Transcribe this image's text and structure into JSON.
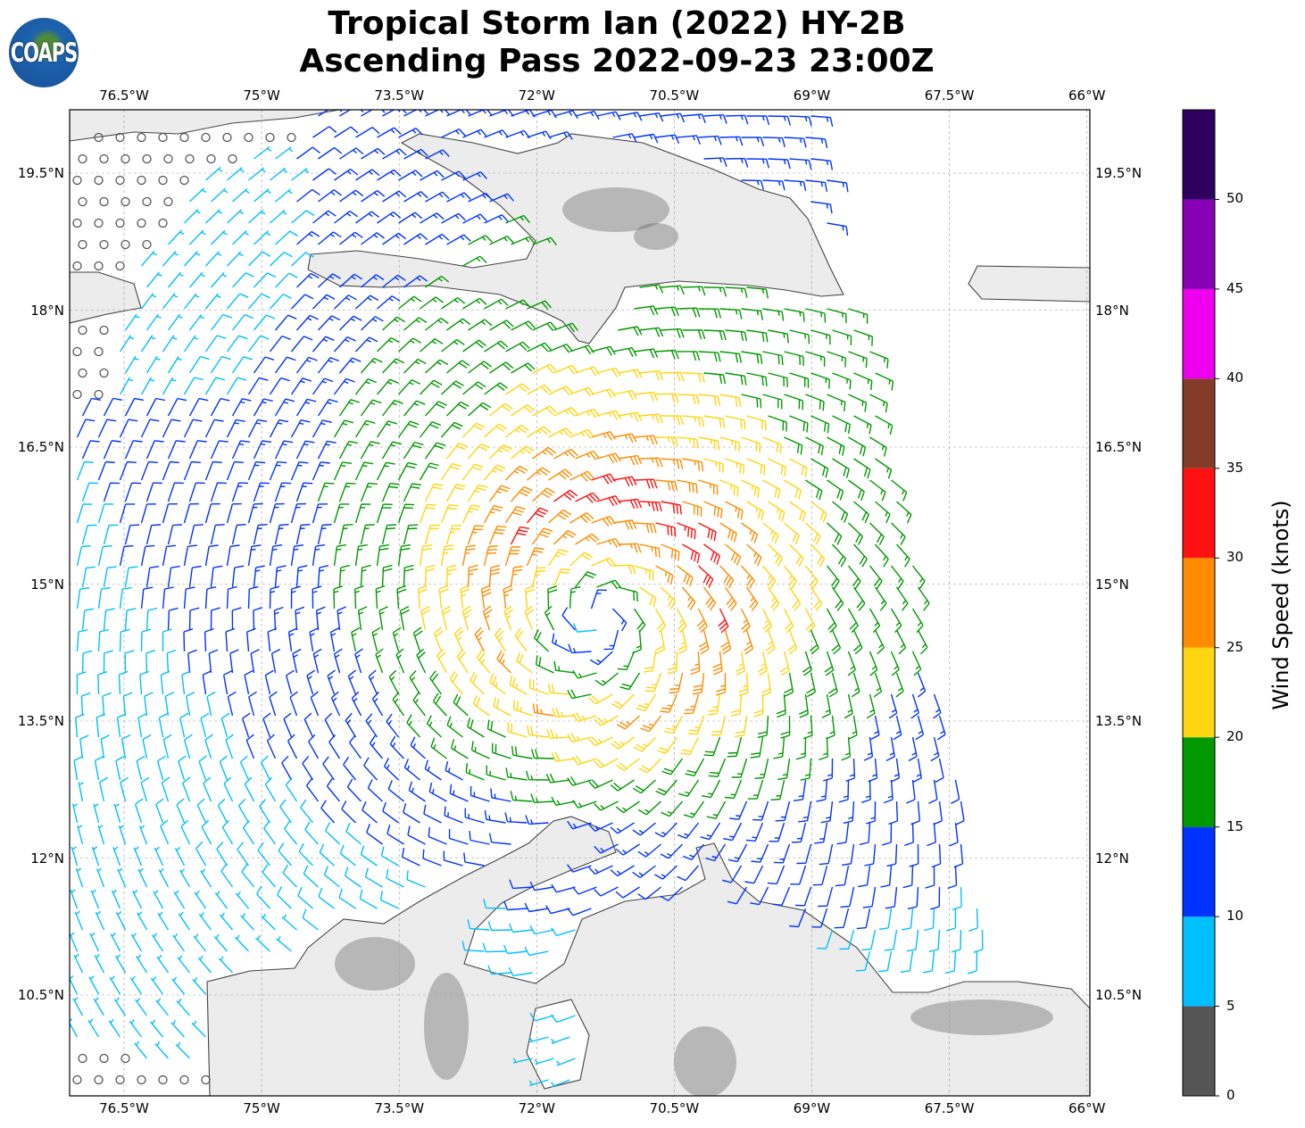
{
  "title": {
    "line1": "Tropical Storm Ian (2022) HY-2B",
    "line2": "Ascending Pass 2022-09-23 23:00Z"
  },
  "logo": {
    "text": "COAPS"
  },
  "axes": {
    "lon_ticks": [
      "76.5°W",
      "75°W",
      "73.5°W",
      "72°W",
      "70.5°W",
      "69°W",
      "67.5°W",
      "66°W"
    ],
    "lon_values": [
      -76.5,
      -75,
      -73.5,
      -72,
      -70.5,
      -69,
      -67.5,
      -66
    ],
    "lat_ticks": [
      "19.5°N",
      "18°N",
      "16.5°N",
      "15°N",
      "13.5°N",
      "12°N",
      "10.5°N"
    ],
    "lat_values": [
      19.5,
      18,
      16.5,
      15,
      13.5,
      12,
      10.5
    ]
  },
  "colorbar": {
    "label": "Wind Speed (knots)",
    "ticks": [
      "0",
      "5",
      "10",
      "15",
      "20",
      "25",
      "30",
      "35",
      "40",
      "45",
      "50"
    ],
    "bounds": [
      0,
      5,
      10,
      15,
      20,
      25,
      30,
      35,
      40,
      45,
      50,
      55
    ],
    "colors": [
      "#555555",
      "#00bfff",
      "#0033ff",
      "#009900",
      "#ffd511",
      "#ff8c00",
      "#ff1111",
      "#843c28",
      "#ee00ee",
      "#8800b3",
      "#2e0060"
    ]
  },
  "vortex": {
    "center_lon": -71.3,
    "center_lat": 14.7,
    "max_wind_kt": 28
  }
}
